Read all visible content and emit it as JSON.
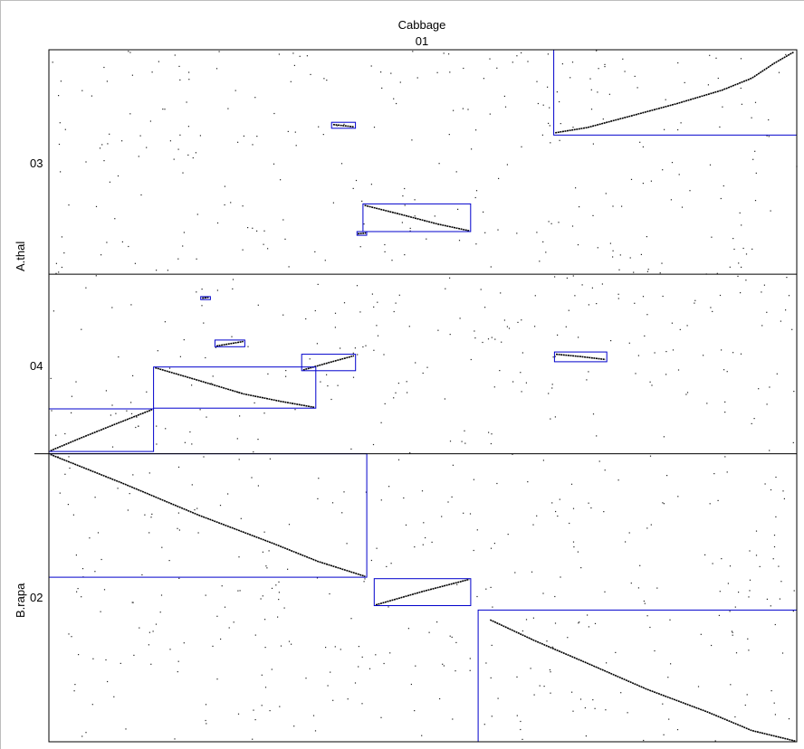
{
  "chart_data": {
    "type": "scatter",
    "title": "Cabbage",
    "x_tracks": [
      {
        "label": "01",
        "start": 0,
        "end": 1000
      }
    ],
    "y_tracks": [
      {
        "label": "03",
        "genome": "A.thal",
        "start": 0,
        "end": 300
      },
      {
        "label": "04",
        "genome": "A.thal",
        "start": 300,
        "end": 540
      },
      {
        "label": "02",
        "genome": "B.rapa",
        "start": 540,
        "end": 925
      }
    ],
    "y_genomes": [
      {
        "label": "A.thal",
        "start": 0,
        "end": 540
      },
      {
        "label": "B.rapa",
        "start": 540,
        "end": 925
      }
    ],
    "xlim": [
      0,
      1000
    ],
    "ylim": [
      0,
      925
    ],
    "blocks": [
      {
        "x": [
          675,
          1000
        ],
        "y": [
          0,
          114
        ],
        "path": [
          [
            677,
            111
          ],
          [
            720,
            104
          ],
          [
            780,
            88
          ],
          [
            840,
            72
          ],
          [
            900,
            54
          ],
          [
            940,
            38
          ],
          [
            970,
            18
          ],
          [
            996,
            3
          ]
        ]
      },
      {
        "x": [
          378,
          410
        ],
        "y": [
          97,
          105
        ],
        "path": [
          [
            380,
            100
          ],
          [
            408,
            103
          ]
        ]
      },
      {
        "x": [
          420,
          564
        ],
        "y": [
          206,
          243
        ],
        "path": [
          [
            422,
            208
          ],
          [
            470,
            220
          ],
          [
            520,
            233
          ],
          [
            562,
            242
          ]
        ]
      },
      {
        "x": [
          412,
          425
        ],
        "y": [
          243,
          248
        ],
        "path": [
          [
            413,
            246
          ],
          [
            424,
            245
          ]
        ]
      },
      {
        "x": [
          203,
          216
        ],
        "y": [
          330,
          334
        ],
        "path": [
          [
            205,
            332
          ],
          [
            214,
            331
          ]
        ]
      },
      {
        "x": [
          222,
          262
        ],
        "y": [
          388,
          397
        ],
        "path": [
          [
            224,
            396
          ],
          [
            260,
            390
          ]
        ]
      },
      {
        "x": [
          338,
          410
        ],
        "y": [
          407,
          429
        ],
        "path": [
          [
            340,
            428
          ],
          [
            375,
            418
          ],
          [
            408,
            409
          ]
        ]
      },
      {
        "x": [
          676,
          746
        ],
        "y": [
          404,
          417
        ],
        "path": [
          [
            678,
            407
          ],
          [
            710,
            410
          ],
          [
            744,
            414
          ]
        ]
      },
      {
        "x": [
          140,
          357
        ],
        "y": [
          424,
          479
        ],
        "path": [
          [
            142,
            425
          ],
          [
            200,
            442
          ],
          [
            260,
            460
          ],
          [
            310,
            470
          ],
          [
            355,
            478
          ]
        ]
      },
      {
        "x": [
          0,
          140
        ],
        "y": [
          480,
          537
        ],
        "path": [
          [
            2,
            536
          ],
          [
            40,
            520
          ],
          [
            90,
            500
          ],
          [
            138,
            481
          ]
        ]
      },
      {
        "x": [
          0,
          425
        ],
        "y": [
          540,
          705
        ],
        "path": [
          [
            2,
            541
          ],
          [
            100,
            580
          ],
          [
            200,
            622
          ],
          [
            300,
            660
          ],
          [
            360,
            684
          ],
          [
            423,
            704
          ]
        ]
      },
      {
        "x": [
          435,
          564
        ],
        "y": [
          707,
          743
        ],
        "path": [
          [
            437,
            742
          ],
          [
            500,
            724
          ],
          [
            562,
            708
          ]
        ]
      },
      {
        "x": [
          574,
          1000
        ],
        "y": [
          749,
          925
        ],
        "path": [
          [
            590,
            762
          ],
          [
            650,
            790
          ],
          [
            720,
            820
          ],
          [
            800,
            855
          ],
          [
            880,
            885
          ],
          [
            940,
            910
          ],
          [
            998,
            924
          ]
        ]
      }
    ],
    "noise_points": 900
  }
}
